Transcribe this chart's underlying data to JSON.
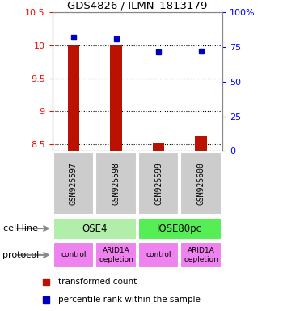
{
  "title": "GDS4826 / ILMN_1813179",
  "samples": [
    "GSM925597",
    "GSM925598",
    "GSM925599",
    "GSM925600"
  ],
  "red_values": [
    10.0,
    10.0,
    8.52,
    8.62
  ],
  "blue_values": [
    82.0,
    81.0,
    71.5,
    72.0
  ],
  "ylim_left": [
    8.4,
    10.5
  ],
  "ylim_right": [
    0,
    100
  ],
  "yticks_left": [
    8.5,
    9.0,
    9.5,
    10.0,
    10.5
  ],
  "ytick_labels_left": [
    "8.5",
    "9",
    "9.5",
    "10",
    "10.5"
  ],
  "yticks_right": [
    0,
    25,
    50,
    75,
    100
  ],
  "ytick_labels_right": [
    "0",
    "25",
    "50",
    "75",
    "100%"
  ],
  "cell_line_labels": [
    "OSE4",
    "IOSE80pc"
  ],
  "cell_line_colors": [
    "#b0eeaa",
    "#55ee55"
  ],
  "cell_line_spans": [
    [
      0,
      2
    ],
    [
      2,
      4
    ]
  ],
  "protocol_labels": [
    "control",
    "ARID1A\ndepletion",
    "control",
    "ARID1A\ndepletion"
  ],
  "protocol_color": "#ee82ee",
  "sample_bg_color": "#cccccc",
  "bar_color": "#bb1100",
  "dot_color": "#0000bb",
  "legend_red_label": "transformed count",
  "legend_blue_label": "percentile rank within the sample",
  "cell_line_row_label": "cell line",
  "protocol_row_label": "protocol"
}
